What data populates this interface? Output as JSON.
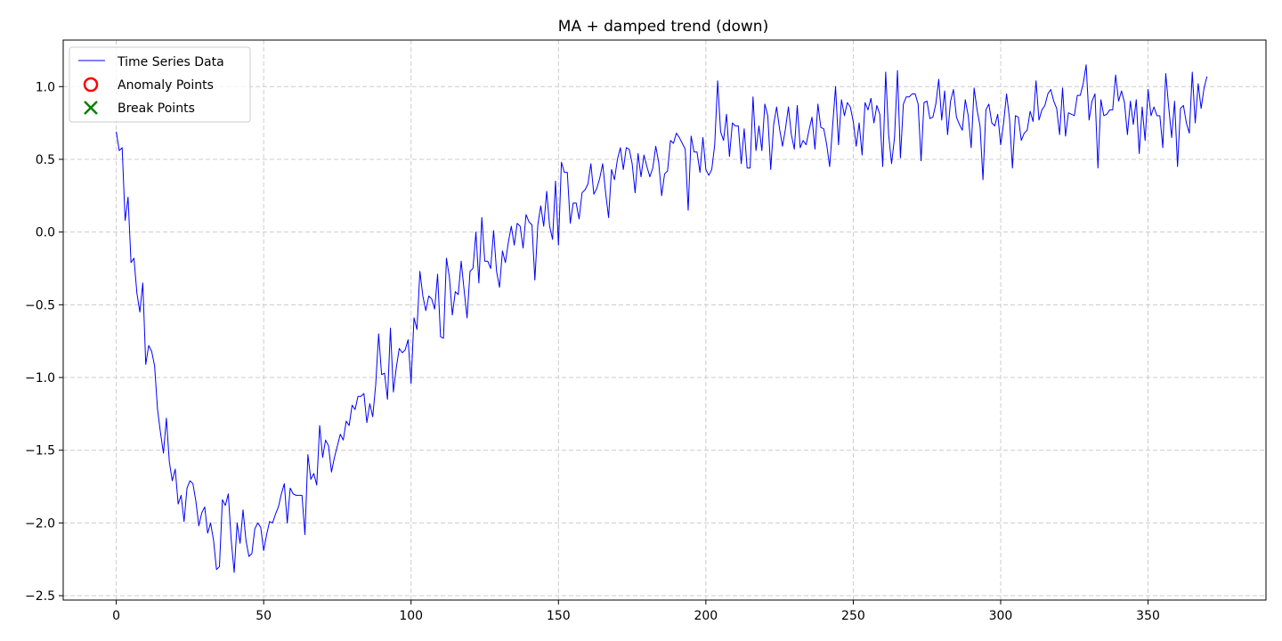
{
  "chart_data": {
    "type": "line",
    "title": "MA + damped trend (down)",
    "xlabel": "",
    "ylabel": "",
    "xlim": [
      -18,
      390
    ],
    "ylim": [
      -2.53,
      1.32
    ],
    "xticks": [
      0,
      50,
      100,
      150,
      200,
      250,
      300,
      350
    ],
    "xtick_labels": [
      "0",
      "50",
      "100",
      "150",
      "200",
      "250",
      "300",
      "350"
    ],
    "yticks": [
      1.0,
      0.5,
      0.0,
      -0.5,
      -1.0,
      -1.5,
      -2.0,
      -2.5
    ],
    "ytick_labels": [
      "1.0",
      "0.5",
      "0.0",
      "−0.5",
      "−1.0",
      "−1.5",
      "−2.0",
      "−2.5"
    ],
    "grid": true,
    "legend_position": "top-left",
    "legend": [
      {
        "label": "Time Series Data",
        "marker": "line",
        "color": "#0000ff"
      },
      {
        "label": "Anomaly Points",
        "marker": "circle",
        "color": "#ff0000"
      },
      {
        "label": "Break Points",
        "marker": "x",
        "color": "#008000"
      }
    ],
    "colors": {
      "series": "#0000ff",
      "anomaly": "#ff0000",
      "break": "#008000",
      "grid": "#cccccc"
    },
    "series": [
      {
        "name": "Time Series Data",
        "x_start": 0,
        "x_step": 1,
        "values": [
          0.69,
          0.56,
          0.58,
          0.08,
          0.24,
          -0.21,
          -0.18,
          -0.42,
          -0.55,
          -0.35,
          -0.91,
          -0.78,
          -0.82,
          -0.92,
          -1.22,
          -1.38,
          -1.52,
          -1.28,
          -1.58,
          -1.71,
          -1.63,
          -1.87,
          -1.81,
          -1.99,
          -1.76,
          -1.71,
          -1.73,
          -1.85,
          -2.02,
          -1.93,
          -1.89,
          -2.07,
          -2.0,
          -2.12,
          -2.32,
          -2.3,
          -1.84,
          -1.88,
          -1.8,
          -2.12,
          -2.34,
          -2.0,
          -2.14,
          -1.91,
          -2.12,
          -2.23,
          -2.21,
          -2.04,
          -2.0,
          -2.03,
          -2.19,
          -2.08,
          -1.99,
          -2.0,
          -1.94,
          -1.89,
          -1.8,
          -1.73,
          -2.0,
          -1.76,
          -1.8,
          -1.81,
          -1.81,
          -1.81,
          -2.08,
          -1.53,
          -1.7,
          -1.66,
          -1.74,
          -1.33,
          -1.55,
          -1.43,
          -1.47,
          -1.65,
          -1.55,
          -1.47,
          -1.39,
          -1.43,
          -1.3,
          -1.33,
          -1.19,
          -1.22,
          -1.13,
          -1.13,
          -1.11,
          -1.31,
          -1.18,
          -1.27,
          -1.05,
          -0.7,
          -0.98,
          -0.97,
          -1.15,
          -0.66,
          -1.1,
          -0.93,
          -0.8,
          -0.83,
          -0.81,
          -0.74,
          -1.04,
          -0.59,
          -0.67,
          -0.27,
          -0.44,
          -0.54,
          -0.44,
          -0.46,
          -0.53,
          -0.29,
          -0.72,
          -0.73,
          -0.18,
          -0.31,
          -0.57,
          -0.41,
          -0.43,
          -0.2,
          -0.4,
          -0.59,
          -0.27,
          -0.25,
          0.0,
          -0.35,
          0.1,
          -0.2,
          -0.2,
          -0.25,
          0.01,
          -0.27,
          -0.38,
          -0.13,
          -0.21,
          -0.07,
          0.04,
          -0.09,
          0.06,
          0.04,
          -0.11,
          0.12,
          0.07,
          0.05,
          -0.33,
          0.05,
          0.18,
          0.04,
          0.28,
          0.04,
          -0.05,
          0.35,
          -0.09,
          0.48,
          0.41,
          0.41,
          0.06,
          0.2,
          0.2,
          0.09,
          0.27,
          0.29,
          0.33,
          0.47,
          0.26,
          0.3,
          0.37,
          0.47,
          0.27,
          0.1,
          0.43,
          0.36,
          0.5,
          0.58,
          0.43,
          0.58,
          0.57,
          0.47,
          0.27,
          0.54,
          0.38,
          0.53,
          0.45,
          0.38,
          0.44,
          0.59,
          0.48,
          0.25,
          0.4,
          0.42,
          0.63,
          0.61,
          0.68,
          0.65,
          0.61,
          0.57,
          0.15,
          0.66,
          0.55,
          0.55,
          0.41,
          0.65,
          0.43,
          0.39,
          0.43,
          0.6,
          1.04,
          0.69,
          0.63,
          0.81,
          0.52,
          0.75,
          0.73,
          0.73,
          0.47,
          0.71,
          0.44,
          0.44,
          0.93,
          0.56,
          0.73,
          0.56,
          0.88,
          0.8,
          0.43,
          0.74,
          0.86,
          0.71,
          0.59,
          0.71,
          0.86,
          0.67,
          0.57,
          0.87,
          0.58,
          0.63,
          0.6,
          0.7,
          0.79,
          0.57,
          0.88,
          0.72,
          0.71,
          0.6,
          0.45,
          0.73,
          1.0,
          0.6,
          0.91,
          0.8,
          0.89,
          0.86,
          0.76,
          0.59,
          0.75,
          0.53,
          0.89,
          0.84,
          0.92,
          0.75,
          0.87,
          0.81,
          0.45,
          1.1,
          0.67,
          0.47,
          0.65,
          1.11,
          0.51,
          0.88,
          0.93,
          0.93,
          0.95,
          0.95,
          0.88,
          0.49,
          0.89,
          0.9,
          0.78,
          0.79,
          0.88,
          1.05,
          0.77,
          0.97,
          0.67,
          0.9,
          0.98,
          0.79,
          0.74,
          0.7,
          0.91,
          0.8,
          0.58,
          0.99,
          0.84,
          0.73,
          0.36,
          0.84,
          0.88,
          0.75,
          0.73,
          0.81,
          0.6,
          0.75,
          0.95,
          0.78,
          0.44,
          0.8,
          0.79,
          0.63,
          0.68,
          0.7,
          0.83,
          0.76,
          1.04,
          0.77,
          0.84,
          0.87,
          0.95,
          0.98,
          0.9,
          0.85,
          0.67,
          0.99,
          0.66,
          0.82,
          0.81,
          0.8,
          0.94,
          0.94,
          1.02,
          1.15,
          0.77,
          0.9,
          0.95,
          0.44,
          0.91,
          0.8,
          0.81,
          0.84,
          0.84,
          1.08,
          0.9,
          0.97,
          0.89,
          0.67,
          0.9,
          0.74,
          0.91,
          0.54,
          0.86,
          0.63,
          0.98,
          0.8,
          0.86,
          0.8,
          0.8,
          0.58,
          1.09,
          0.86,
          0.65,
          0.9,
          0.45,
          0.85,
          0.87,
          0.75,
          0.68,
          1.1,
          0.75,
          1.02,
          0.85,
          0.99,
          1.07
        ]
      }
    ],
    "anomaly_points": [],
    "break_points": []
  }
}
